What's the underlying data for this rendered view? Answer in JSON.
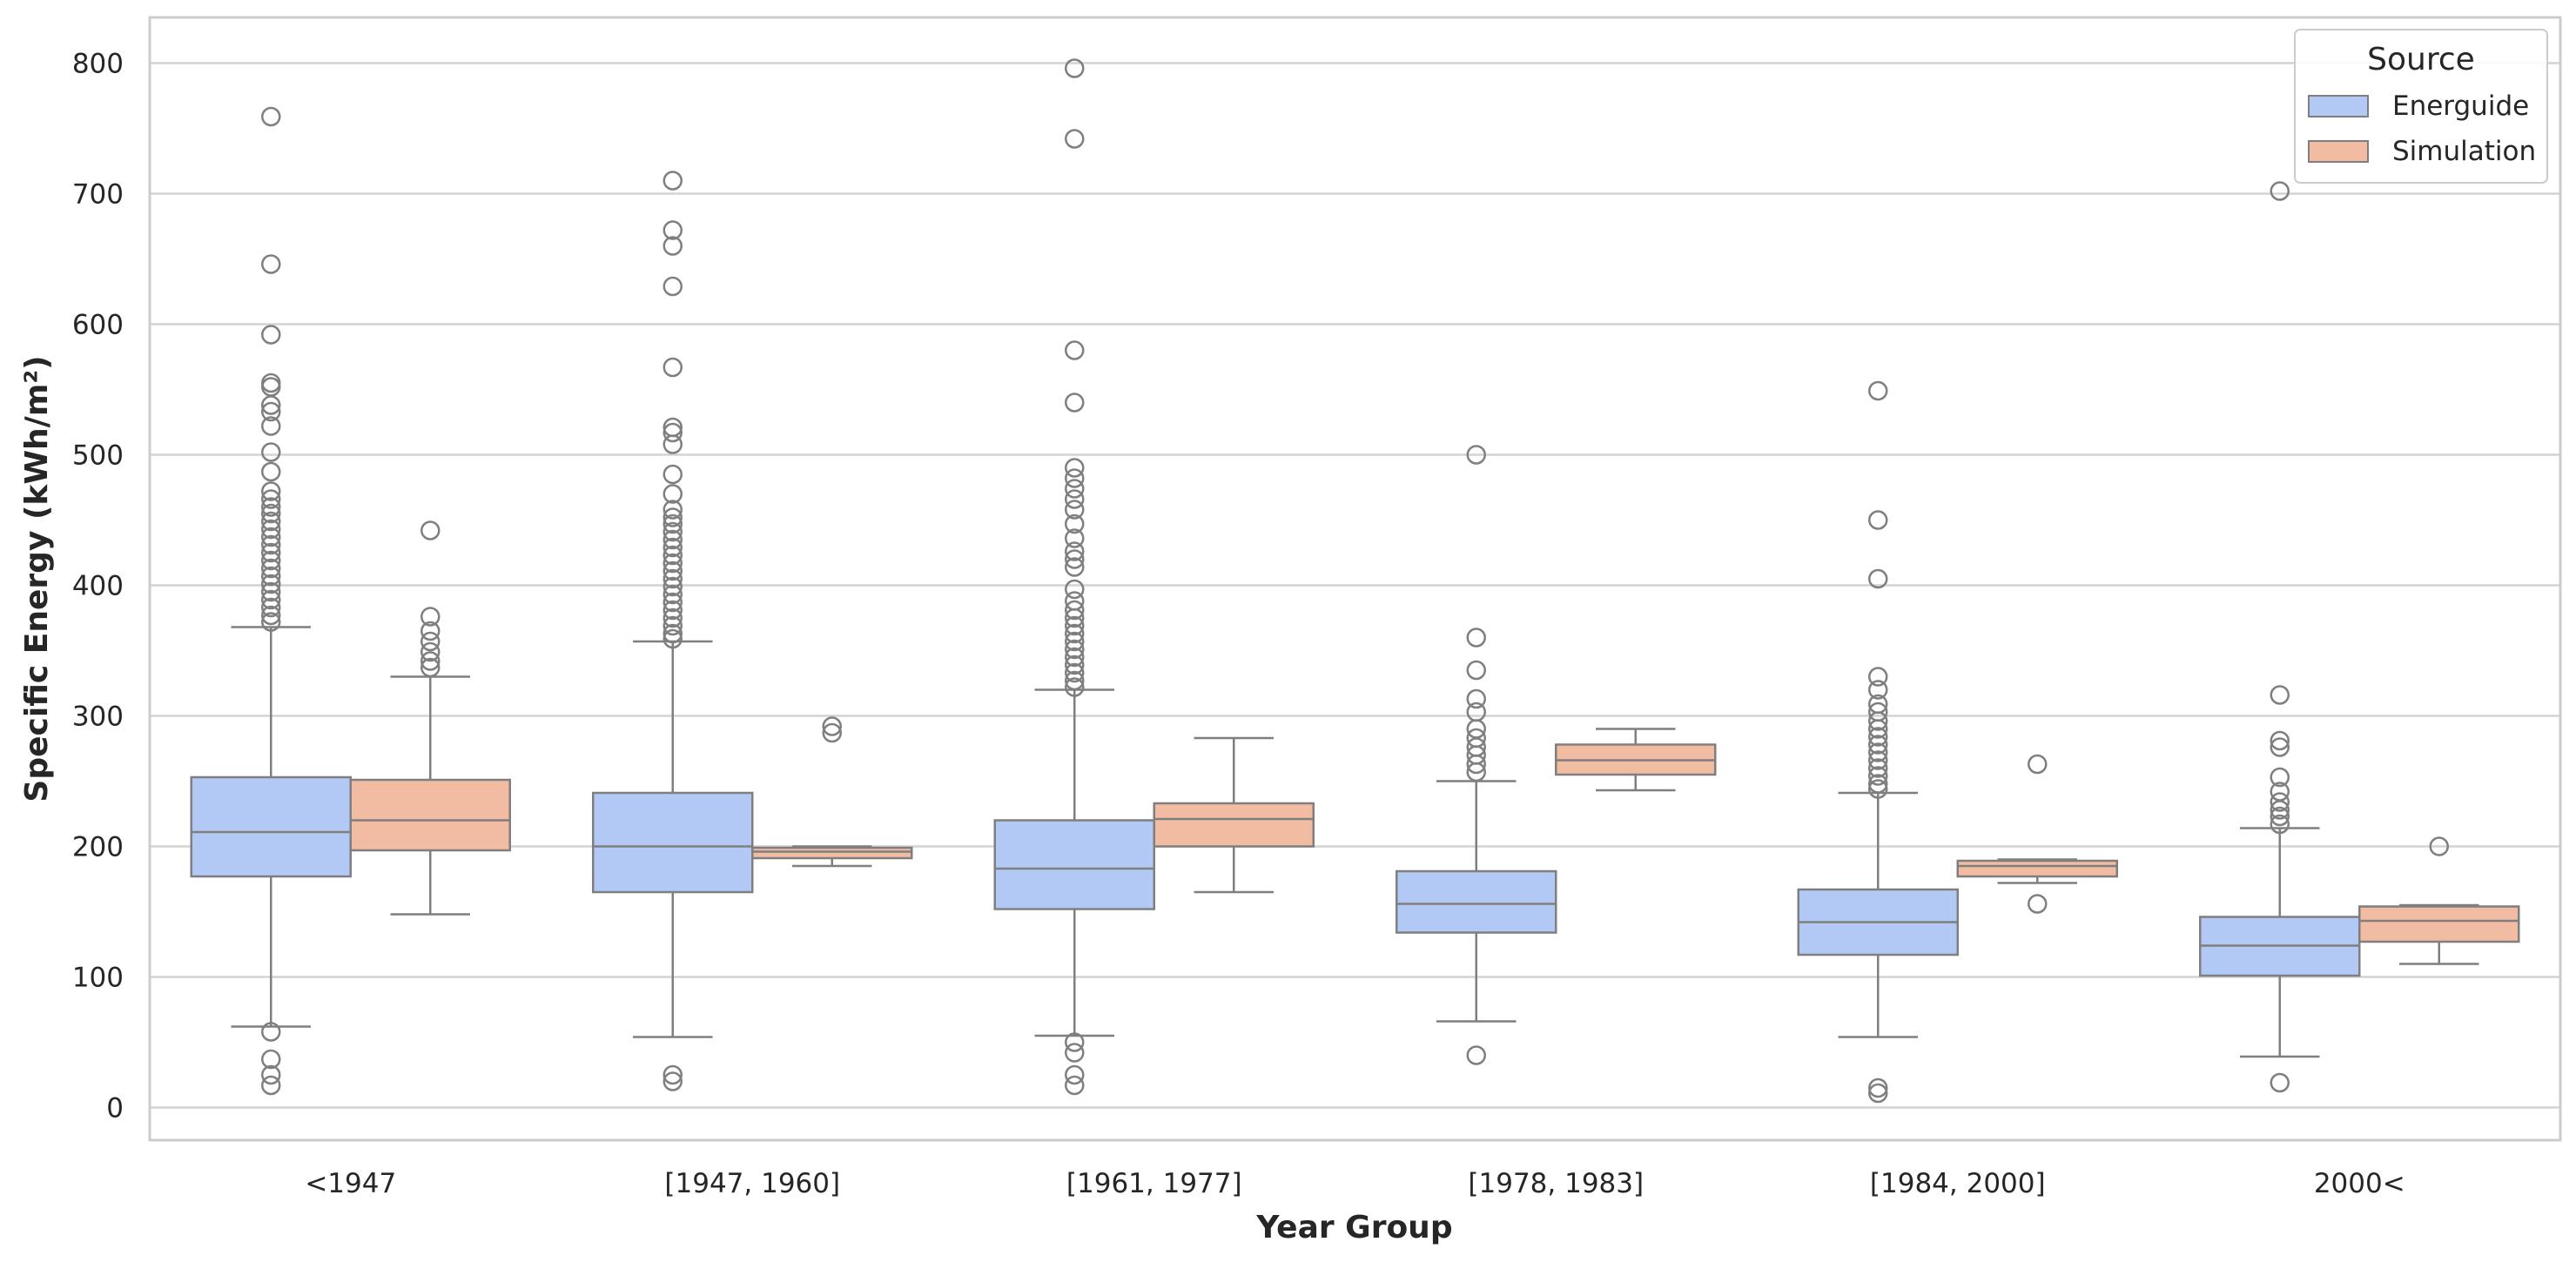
{
  "chart_data": {
    "type": "box",
    "title": "",
    "xlabel": "Year Group",
    "ylabel": "Specific Energy (kWh/m²)",
    "ylim": [
      -25,
      835
    ],
    "yticks": [
      0,
      100,
      200,
      300,
      400,
      500,
      600,
      700,
      800
    ],
    "grid": true,
    "categories": [
      "<1947",
      "[1947, 1960]",
      "[1961, 1977]",
      "[1978, 1983]",
      "[1984, 2000]",
      "2000<"
    ],
    "legend": {
      "title": "Source",
      "position": "top-right",
      "entries": [
        {
          "label": "Energuide",
          "color": "#b3c9f5"
        },
        {
          "label": "Simulation",
          "color": "#f1bca2"
        }
      ]
    },
    "series": [
      {
        "name": "Energuide",
        "color": "#b3c9f5",
        "boxes": [
          {
            "whislo": 62,
            "q1": 177,
            "med": 211,
            "q3": 253,
            "whishi": 368,
            "fliers": [
              759,
              646,
              592,
              555,
              552,
              538,
              533,
              522,
              502,
              487,
              472,
              466,
              460,
              455,
              449,
              443,
              437,
              431,
              425,
              419,
              413,
              407,
              401,
              395,
              389,
              383,
              377,
              372,
              58,
              37,
              25,
              17
            ]
          },
          {
            "whislo": 54,
            "q1": 165,
            "med": 200,
            "q3": 241,
            "whishi": 357,
            "fliers": [
              710,
              672,
              660,
              629,
              567,
              521,
              517,
              508,
              485,
              470,
              458,
              452,
              447,
              441,
              435,
              429,
              423,
              417,
              411,
              405,
              399,
              393,
              387,
              381,
              375,
              369,
              363,
              359,
              25,
              20
            ]
          },
          {
            "whislo": 55,
            "q1": 152,
            "med": 183,
            "q3": 220,
            "whishi": 320,
            "fliers": [
              796,
              742,
              580,
              540,
              490,
              482,
              474,
              466,
              458,
              447,
              436,
              426,
              420,
              414,
              397,
              388,
              381,
              375,
              369,
              363,
              357,
              351,
              345,
              339,
              333,
              327,
              322,
              50,
              42,
              25,
              17
            ]
          },
          {
            "whislo": 66,
            "q1": 134,
            "med": 156,
            "q3": 181,
            "whishi": 250,
            "fliers": [
              500,
              360,
              335,
              313,
              303,
              290,
              283,
              276,
              270,
              263,
              257,
              40
            ]
          },
          {
            "whislo": 54,
            "q1": 117,
            "med": 142,
            "q3": 167,
            "whishi": 241,
            "fliers": [
              549,
              450,
              405,
              330,
              320,
              309,
              303,
              296,
              290,
              284,
              278,
              272,
              266,
              260,
              254,
              248,
              244,
              15,
              11
            ]
          },
          {
            "whislo": 39,
            "q1": 101,
            "med": 124,
            "q3": 146,
            "whishi": 214,
            "fliers": [
              702,
              316,
              281,
              276,
              253,
              242,
              234,
              228,
              223,
              217,
              19
            ]
          }
        ]
      },
      {
        "name": "Simulation",
        "color": "#f1bca2",
        "boxes": [
          {
            "whislo": 148,
            "q1": 197,
            "med": 220,
            "q3": 251,
            "whishi": 330,
            "fliers": [
              442,
              376,
              365,
              357,
              349,
              342,
              337
            ]
          },
          {
            "whislo": 185,
            "q1": 191,
            "med": 196,
            "q3": 199,
            "whishi": 200,
            "fliers": [
              292,
              287
            ]
          },
          {
            "whislo": 165,
            "q1": 200,
            "med": 221,
            "q3": 233,
            "whishi": 283,
            "fliers": []
          },
          {
            "whislo": 243,
            "q1": 255,
            "med": 266,
            "q3": 278,
            "whishi": 290,
            "fliers": []
          },
          {
            "whislo": 172,
            "q1": 177,
            "med": 185,
            "q3": 189,
            "whishi": 190,
            "fliers": [
              263,
              156
            ]
          },
          {
            "whislo": 110,
            "q1": 127,
            "med": 143,
            "q3": 154,
            "whishi": 155,
            "fliers": [
              200
            ]
          }
        ]
      }
    ]
  }
}
